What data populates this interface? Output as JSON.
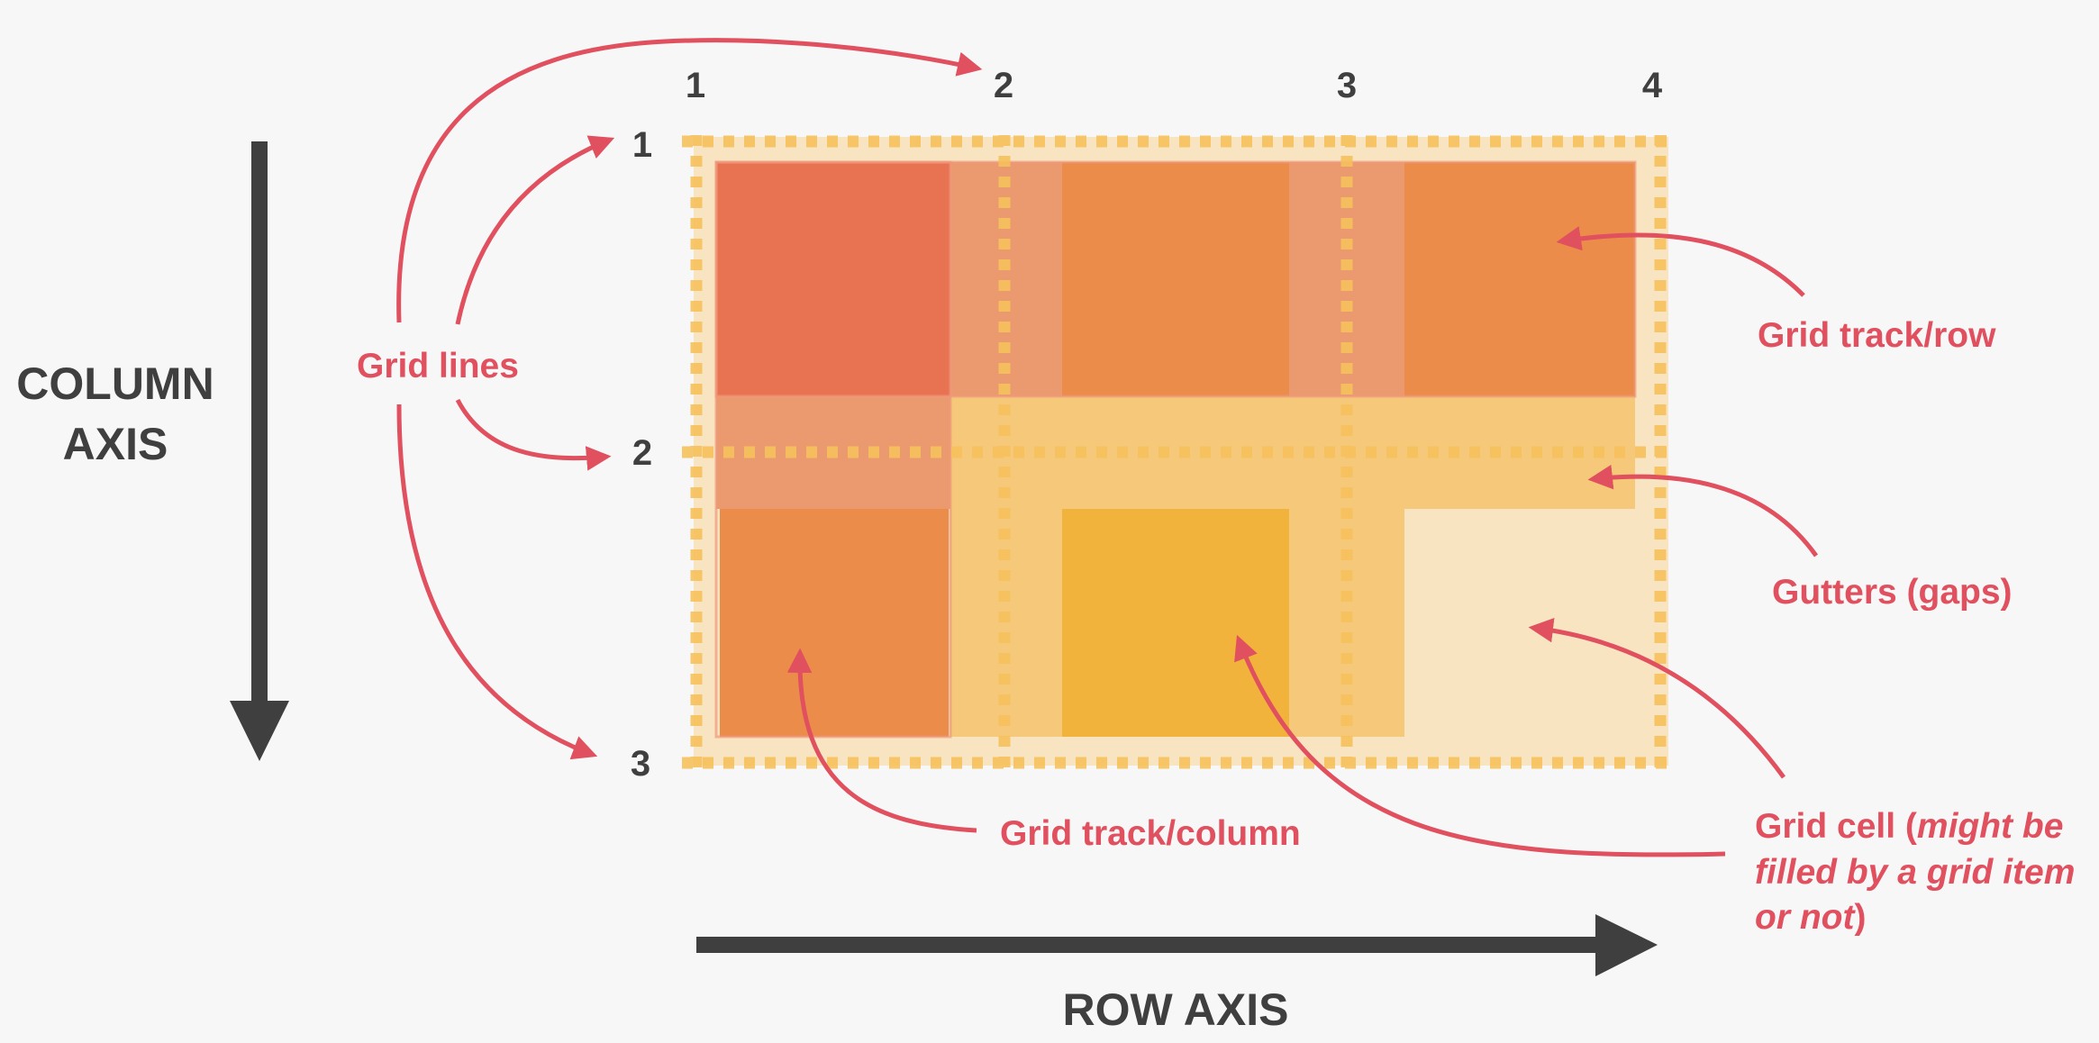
{
  "column_numbers": [
    "1",
    "2",
    "3",
    "4"
  ],
  "row_numbers": [
    "1",
    "2",
    "3"
  ],
  "axes": {
    "column_axis_line1": "COLUMN",
    "column_axis_line2": "AXIS",
    "row_axis": "ROW AXIS"
  },
  "annotations": {
    "grid_lines": "Grid lines",
    "grid_track_row": "Grid track/row",
    "gutters": "Gutters (gaps)",
    "grid_track_column": "Grid track/column",
    "grid_cell_prefix": "Grid cell (",
    "grid_cell_italic_1": "might be",
    "grid_cell_italic_2": "filled by a grid item",
    "grid_cell_italic_3": "or not",
    "grid_cell_suffix": ")"
  },
  "colors": {
    "background": "#f7f7f7",
    "annotation": "#e0505f",
    "axis": "#3f3f3f",
    "grid_line_dots": "#f6c15c",
    "cell_red": "#e87353",
    "cell_orange": "#eb8c4a",
    "cell_yellow": "#f2b33d",
    "gutter_peach": "#eb9a70",
    "gutter_light": "#f6c879",
    "empty_cell": "#f9e4c1"
  }
}
